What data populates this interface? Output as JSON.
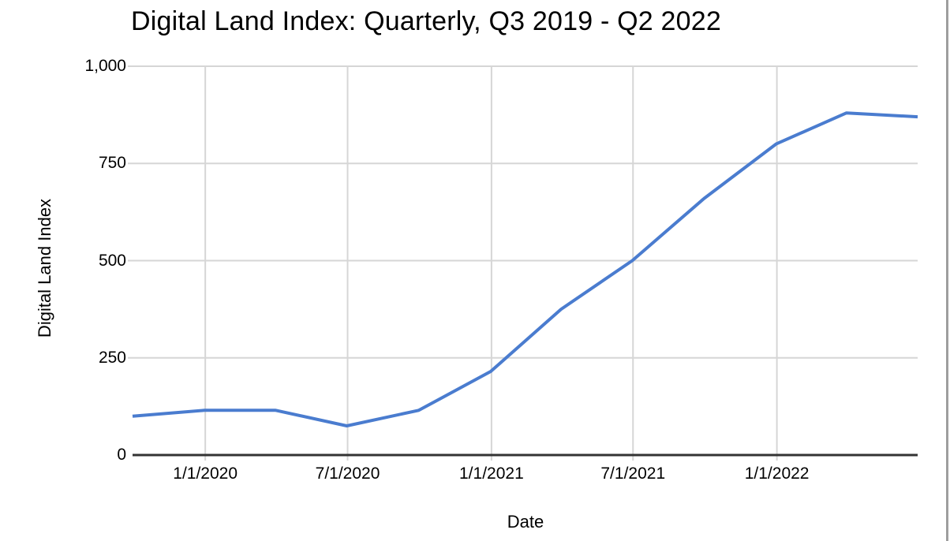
{
  "chart_data": {
    "type": "line",
    "title": "Digital Land Index: Quarterly, Q3 2019 - Q2 2022",
    "xlabel": "Date",
    "ylabel": "Digital Land Index",
    "x": [
      "9/30/2019",
      "12/31/2019",
      "3/31/2020",
      "6/30/2020",
      "9/30/2020",
      "12/31/2020",
      "3/31/2021",
      "6/30/2021",
      "9/30/2021",
      "12/31/2021",
      "3/31/2022",
      "6/30/2022"
    ],
    "series": [
      {
        "name": "Digital Land Index",
        "values": [
          100,
          115,
          115,
          75,
          115,
          215,
          375,
          500,
          660,
          800,
          880,
          870
        ],
        "color": "#4a7ccf"
      }
    ],
    "ylim": [
      0,
      1000
    ],
    "y_ticks": [
      {
        "value": 0,
        "label": "0"
      },
      {
        "value": 250,
        "label": "250"
      },
      {
        "value": 500,
        "label": "500"
      },
      {
        "value": 750,
        "label": "750"
      },
      {
        "value": 1000,
        "label": "1,000"
      }
    ],
    "x_ticks": [
      {
        "date": "1/1/2020",
        "label": "1/1/2020"
      },
      {
        "date": "7/1/2020",
        "label": "7/1/2020"
      },
      {
        "date": "1/1/2021",
        "label": "1/1/2021"
      },
      {
        "date": "7/1/2021",
        "label": "7/1/2021"
      },
      {
        "date": "1/1/2022",
        "label": "1/1/2022"
      }
    ],
    "grid": true,
    "legend": false,
    "gridline_color": "#d6d6d6",
    "axis_color": "#333333",
    "background_color": "#ffffff",
    "border_color": "#9e9e9e"
  }
}
